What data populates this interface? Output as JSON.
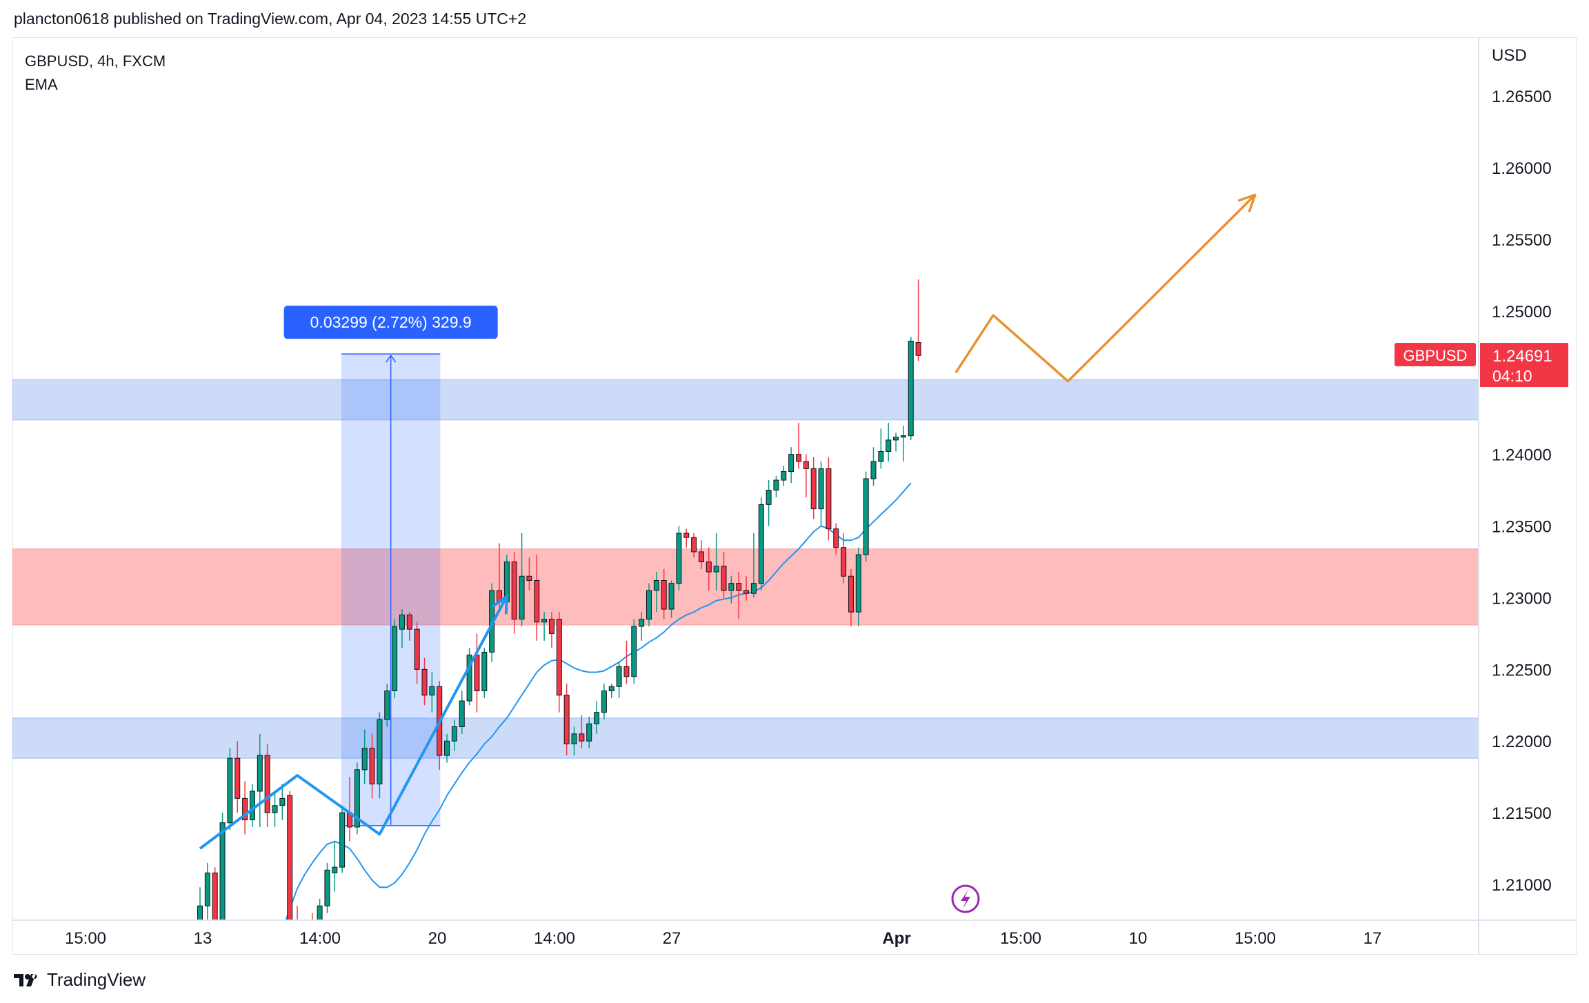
{
  "header": {
    "publish_text": "plancton0618 published on TradingView.com, Apr 04, 2023 14:55 UTC+2"
  },
  "legend": {
    "symbol_line": "GBPUSD, 4h, FXCM",
    "indicator": "EMA"
  },
  "footer": {
    "brand": "TradingView"
  },
  "colors": {
    "up": "#089981",
    "down": "#f23645",
    "ema": "#2196f3",
    "blue_zone": "#bbd0f5",
    "red_zone": "#ffabab",
    "measure": "#2962ff",
    "projection": "#e8912f",
    "price_label": "#f23645"
  },
  "chart_data": {
    "type": "candlestick",
    "symbol": "GBPUSD",
    "timeframe": "4h",
    "exchange": "FXCM",
    "currency": "USD",
    "ylim": [
      1.2075,
      1.269
    ],
    "y_ticks": [
      "1.26500",
      "1.26000",
      "1.25500",
      "1.25000",
      "1.24000",
      "1.23500",
      "1.23000",
      "1.22500",
      "1.22000",
      "1.21500",
      "1.21000"
    ],
    "x_ticks": [
      {
        "label": "15:00",
        "bold": false
      },
      {
        "label": "13",
        "bold": false
      },
      {
        "label": "14:00",
        "bold": false
      },
      {
        "label": "20",
        "bold": false
      },
      {
        "label": "14:00",
        "bold": false
      },
      {
        "label": "27",
        "bold": false
      },
      {
        "label": "Apr",
        "bold": true
      },
      {
        "label": "15:00",
        "bold": false
      },
      {
        "label": "10",
        "bold": false
      },
      {
        "label": "15:00",
        "bold": false
      },
      {
        "label": "17",
        "bold": false
      }
    ],
    "candles": [
      [
        1.2045,
        1.2098,
        1.203,
        1.2085
      ],
      [
        1.2085,
        1.2115,
        1.207,
        1.2108
      ],
      [
        1.2108,
        1.2112,
        1.206,
        1.2075
      ],
      [
        1.2075,
        1.215,
        1.2068,
        1.2143
      ],
      [
        1.2143,
        1.2195,
        1.2138,
        1.2188
      ],
      [
        1.2188,
        1.22,
        1.215,
        1.216
      ],
      [
        1.216,
        1.2172,
        1.2135,
        1.2145
      ],
      [
        1.2145,
        1.217,
        1.214,
        1.2165
      ],
      [
        1.2165,
        1.2205,
        1.214,
        1.219
      ],
      [
        1.219,
        1.2198,
        1.214,
        1.215
      ],
      [
        1.215,
        1.2165,
        1.214,
        1.2155
      ],
      [
        1.2155,
        1.217,
        1.2145,
        1.216
      ],
      [
        1.2162,
        1.2165,
        1.206,
        1.207
      ],
      [
        1.207,
        1.2085,
        1.205,
        1.206
      ],
      [
        1.206,
        1.2075,
        1.205,
        1.2065
      ],
      [
        1.2065,
        1.208,
        1.2045,
        1.205
      ],
      [
        1.205,
        1.209,
        1.2045,
        1.2085
      ],
      [
        1.2085,
        1.2115,
        1.208,
        1.211
      ],
      [
        1.2108,
        1.213,
        1.2095,
        1.2112
      ],
      [
        1.2112,
        1.2155,
        1.2108,
        1.215
      ],
      [
        1.215,
        1.2175,
        1.213,
        1.214
      ],
      [
        1.214,
        1.2185,
        1.2135,
        1.218
      ],
      [
        1.218,
        1.2208,
        1.217,
        1.2195
      ],
      [
        1.2195,
        1.2205,
        1.216,
        1.217
      ],
      [
        1.217,
        1.222,
        1.216,
        1.2215
      ],
      [
        1.2215,
        1.224,
        1.221,
        1.2235
      ],
      [
        1.2235,
        1.2285,
        1.223,
        1.228
      ],
      [
        1.2278,
        1.2292,
        1.2265,
        1.2288
      ],
      [
        1.2288,
        1.229,
        1.227,
        1.2278
      ],
      [
        1.2278,
        1.2283,
        1.224,
        1.225
      ],
      [
        1.225,
        1.2258,
        1.2225,
        1.2232
      ],
      [
        1.2232,
        1.2248,
        1.222,
        1.2238
      ],
      [
        1.2238,
        1.2242,
        1.218,
        1.219
      ],
      [
        1.219,
        1.2205,
        1.2185,
        1.22
      ],
      [
        1.22,
        1.2215,
        1.2193,
        1.221
      ],
      [
        1.221,
        1.2235,
        1.2205,
        1.2228
      ],
      [
        1.2228,
        1.2265,
        1.2225,
        1.226
      ],
      [
        1.226,
        1.2275,
        1.222,
        1.2235
      ],
      [
        1.2235,
        1.2265,
        1.223,
        1.2262
      ],
      [
        1.2262,
        1.231,
        1.2255,
        1.2305
      ],
      [
        1.2305,
        1.2338,
        1.229,
        1.2297
      ],
      [
        1.2297,
        1.233,
        1.229,
        1.2325
      ],
      [
        1.2325,
        1.2332,
        1.2275,
        1.2285
      ],
      [
        1.2285,
        1.2345,
        1.228,
        1.2315
      ],
      [
        1.2315,
        1.2328,
        1.2305,
        1.2312
      ],
      [
        1.2312,
        1.233,
        1.227,
        1.2283
      ],
      [
        1.2283,
        1.229,
        1.227,
        1.2285
      ],
      [
        1.2285,
        1.229,
        1.2265,
        1.2275
      ],
      [
        1.2285,
        1.229,
        1.222,
        1.2232
      ],
      [
        1.2232,
        1.224,
        1.219,
        1.2198
      ],
      [
        1.2198,
        1.221,
        1.219,
        1.2205
      ],
      [
        1.2205,
        1.2218,
        1.2195,
        1.22
      ],
      [
        1.22,
        1.2217,
        1.2195,
        1.2212
      ],
      [
        1.2212,
        1.2228,
        1.2205,
        1.222
      ],
      [
        1.222,
        1.224,
        1.2215,
        1.2235
      ],
      [
        1.2235,
        1.224,
        1.223,
        1.2238
      ],
      [
        1.2238,
        1.2255,
        1.223,
        1.2252
      ],
      [
        1.2252,
        1.227,
        1.224,
        1.2245
      ],
      [
        1.2245,
        1.2285,
        1.224,
        1.228
      ],
      [
        1.228,
        1.229,
        1.227,
        1.2285
      ],
      [
        1.2285,
        1.231,
        1.228,
        1.2305
      ],
      [
        1.2305,
        1.2318,
        1.229,
        1.2312
      ],
      [
        1.2312,
        1.232,
        1.2285,
        1.2292
      ],
      [
        1.2292,
        1.2312,
        1.2286,
        1.231
      ],
      [
        1.231,
        1.235,
        1.2305,
        1.2345
      ],
      [
        1.2345,
        1.2348,
        1.2335,
        1.2342
      ],
      [
        1.2342,
        1.2345,
        1.2328,
        1.2332
      ],
      [
        1.2332,
        1.234,
        1.232,
        1.2325
      ],
      [
        1.2325,
        1.2335,
        1.2305,
        1.2318
      ],
      [
        1.2318,
        1.2345,
        1.2305,
        1.2322
      ],
      [
        1.2322,
        1.2332,
        1.23,
        1.2305
      ],
      [
        1.2305,
        1.2315,
        1.2296,
        1.231
      ],
      [
        1.231,
        1.2318,
        1.2285,
        1.2305
      ],
      [
        1.2305,
        1.2315,
        1.2298,
        1.2303
      ],
      [
        1.2303,
        1.2345,
        1.23,
        1.231
      ],
      [
        1.231,
        1.237,
        1.2305,
        1.2365
      ],
      [
        1.2365,
        1.2382,
        1.235,
        1.2375
      ],
      [
        1.2375,
        1.2385,
        1.237,
        1.2382
      ],
      [
        1.2382,
        1.2392,
        1.2378,
        1.2388
      ],
      [
        1.2388,
        1.2405,
        1.238,
        1.24
      ],
      [
        1.24,
        1.2422,
        1.239,
        1.2395
      ],
      [
        1.2395,
        1.24,
        1.237,
        1.239
      ],
      [
        1.239,
        1.2398,
        1.2355,
        1.2362
      ],
      [
        1.2362,
        1.2395,
        1.235,
        1.239
      ],
      [
        1.239,
        1.2398,
        1.234,
        1.2348
      ],
      [
        1.2348,
        1.2352,
        1.233,
        1.2335
      ],
      [
        1.2335,
        1.2345,
        1.231,
        1.2315
      ],
      [
        1.2315,
        1.232,
        1.228,
        1.229
      ],
      [
        1.229,
        1.2335,
        1.228,
        1.233
      ],
      [
        1.233,
        1.2388,
        1.2325,
        1.2383
      ],
      [
        1.2383,
        1.2405,
        1.2378,
        1.2395
      ],
      [
        1.2395,
        1.2418,
        1.239,
        1.2402
      ],
      [
        1.2402,
        1.2422,
        1.2395,
        1.241
      ],
      [
        1.241,
        1.2415,
        1.2402,
        1.2412
      ],
      [
        1.2412,
        1.242,
        1.2395,
        1.2413
      ],
      [
        1.2413,
        1.2482,
        1.241,
        1.2479
      ],
      [
        1.2478,
        1.2522,
        1.2465,
        1.2469
      ]
    ],
    "ema_values": [
      1.2033,
      1.204,
      1.2052,
      1.2068,
      1.2083,
      1.2097,
      1.2107,
      1.2115,
      1.2122,
      1.2128,
      1.213,
      1.2128,
      1.2125,
      1.2118,
      1.211,
      1.2103,
      1.2098,
      1.2098,
      1.2101,
      1.2107,
      1.2115,
      1.2124,
      1.2135,
      1.2144,
      1.2152,
      1.2162,
      1.217,
      1.2178,
      1.2185,
      1.2191,
      1.2198,
      1.2203,
      1.221,
      1.2216,
      1.2224,
      1.2232,
      1.224,
      1.2248,
      1.2253,
      1.2256,
      1.2257,
      1.2254,
      1.2251,
      1.2249,
      1.2248,
      1.2248,
      1.2249,
      1.2252,
      1.2255,
      1.2259,
      1.2262,
      1.2265,
      1.2269,
      1.2272,
      1.2276,
      1.2281,
      1.2285,
      1.2288,
      1.229,
      1.2293,
      1.2295,
      1.2298,
      1.2299,
      1.23,
      1.2302,
      1.2303,
      1.2304,
      1.2307,
      1.2312,
      1.2318,
      1.2324,
      1.2329,
      1.2334,
      1.234,
      1.2346,
      1.235,
      1.2348,
      1.2344,
      1.234,
      1.234,
      1.2342,
      1.2348,
      1.2353,
      1.2358,
      1.2363,
      1.2368,
      1.2374,
      1.238
    ],
    "ema_start_index": 8,
    "zones": [
      {
        "name": "upper-support-zone",
        "color": "blue",
        "from": 1.2424,
        "to": 1.2452
      },
      {
        "name": "resistance-zone",
        "color": "red",
        "from": 1.2281,
        "to": 1.2334
      },
      {
        "name": "lower-support-zone",
        "color": "blue",
        "from": 1.2188,
        "to": 1.2216
      }
    ],
    "measure": {
      "label": "0.03299 (2.72%) 329.9",
      "from_price": 1.2141,
      "to_price": 1.247,
      "from_index": 20,
      "to_index": 31
    },
    "path_lines": [
      {
        "name": "blue-impulse-path",
        "color": "blue",
        "points": [
          [
            1.2125,
            0
          ],
          [
            1.2176,
            13
          ],
          [
            1.2135,
            24
          ],
          [
            1.2301,
            41
          ]
        ]
      },
      {
        "name": "orange-projection-path",
        "color": "orange",
        "points": [
          [
            1.2457,
            101
          ],
          [
            1.2497,
            106
          ],
          [
            1.2451,
            116
          ],
          [
            1.2581,
            141
          ]
        ]
      }
    ],
    "last_price": {
      "symbol": "GBPUSD",
      "price": "1.24691",
      "countdown": "04:10"
    }
  }
}
